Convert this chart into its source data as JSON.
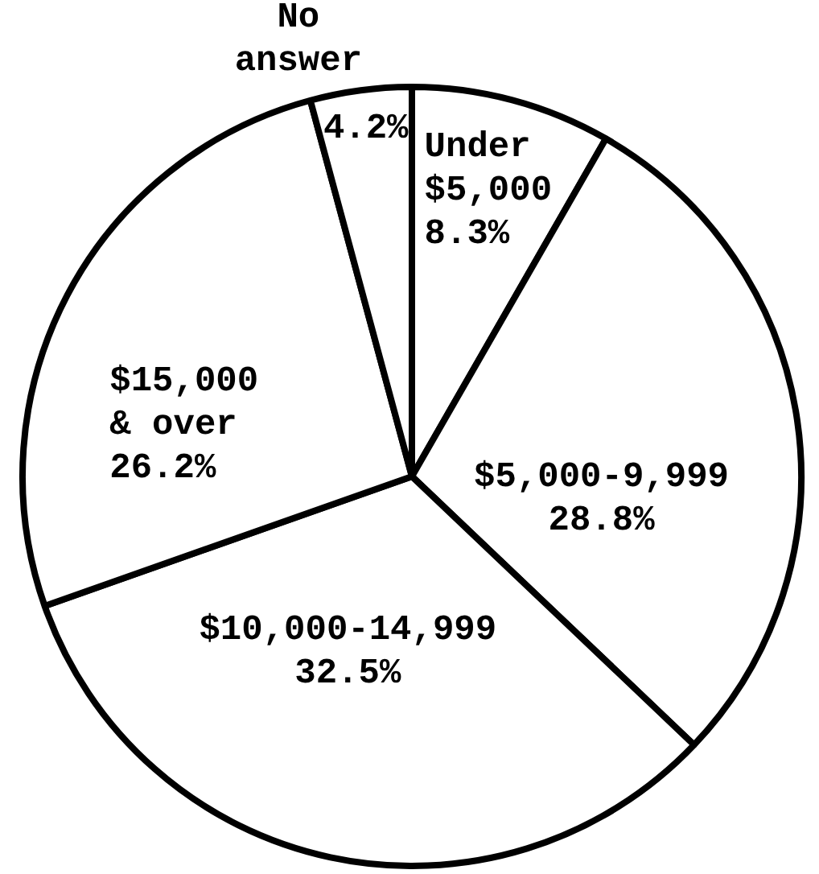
{
  "chart_data": {
    "type": "pie",
    "categories": [
      "Under $5,000",
      "$5,000-9,999",
      "$10,000-14,999",
      "$15,000 & over",
      "No answer"
    ],
    "values": [
      8.3,
      28.8,
      32.5,
      26.2,
      4.2
    ],
    "colors": [
      "#ffffff",
      "#ffffff",
      "#ffffff",
      "#ffffff",
      "#ffffff"
    ],
    "value_labels": [
      "8.3%",
      "28.8%",
      "32.5%",
      "26.2%",
      "4.2%"
    ]
  }
}
